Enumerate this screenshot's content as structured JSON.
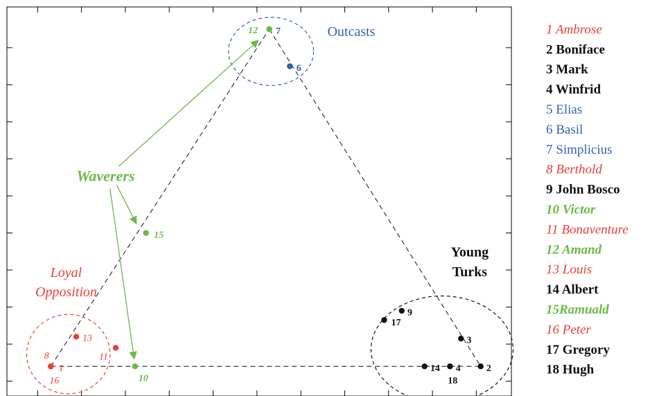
{
  "colors": {
    "loyal": "#e8403a",
    "outcast": "#3560ad",
    "waverer": "#6ab84a",
    "turk": "#111111"
  },
  "chart_data": {
    "type": "scatter",
    "title": "",
    "xlabel": "",
    "ylabel": "",
    "grid": false,
    "xlim": [
      0,
      11.5
    ],
    "ylim": [
      0,
      10.5
    ],
    "points": [
      {
        "id": "1",
        "x": 1.0,
        "y": 0.8,
        "group": "loyal"
      },
      {
        "id": "2",
        "x": 10.8,
        "y": 0.8,
        "group": "turk"
      },
      {
        "id": "3",
        "x": 10.35,
        "y": 1.55,
        "group": "turk"
      },
      {
        "id": "4",
        "x": 10.1,
        "y": 0.8,
        "group": "turk"
      },
      {
        "id": "5",
        "x": 6.45,
        "y": 8.9,
        "group": "outcast"
      },
      {
        "id": "6",
        "x": 6.45,
        "y": 8.9,
        "group": "outcast"
      },
      {
        "id": "7",
        "x": 5.98,
        "y": 9.9,
        "group": "outcast"
      },
      {
        "id": "8",
        "x": 1.0,
        "y": 0.8,
        "group": "loyal"
      },
      {
        "id": "9",
        "x": 9.0,
        "y": 2.3,
        "group": "turk"
      },
      {
        "id": "10",
        "x": 2.92,
        "y": 0.8,
        "group": "waverer"
      },
      {
        "id": "11",
        "x": 2.48,
        "y": 1.3,
        "group": "loyal"
      },
      {
        "id": "12",
        "x": 5.98,
        "y": 9.9,
        "group": "waverer"
      },
      {
        "id": "13",
        "x": 1.58,
        "y": 1.6,
        "group": "loyal"
      },
      {
        "id": "14",
        "x": 9.52,
        "y": 0.8,
        "group": "turk"
      },
      {
        "id": "15",
        "x": 3.17,
        "y": 4.4,
        "group": "waverer"
      },
      {
        "id": "16",
        "x": 1.0,
        "y": 0.8,
        "group": "loyal"
      },
      {
        "id": "17",
        "x": 8.6,
        "y": 2.05,
        "group": "turk"
      },
      {
        "id": "18",
        "x": 10.1,
        "y": 0.8,
        "group": "turk"
      }
    ],
    "point_labels": [
      {
        "text": "1",
        "x": 1.18,
        "y": 0.73,
        "group": "loyal"
      },
      {
        "text": "8",
        "x": 0.85,
        "y": 1.07,
        "group": "loyal"
      },
      {
        "text": "16",
        "x": 0.97,
        "y": 0.4,
        "group": "loyal"
      },
      {
        "text": "13",
        "x": 1.72,
        "y": 1.55,
        "group": "loyal"
      },
      {
        "text": "11",
        "x": 2.1,
        "y": 1.04,
        "group": "loyal"
      },
      {
        "text": "10",
        "x": 3.0,
        "y": 0.46,
        "group": "waverer"
      },
      {
        "text": "15",
        "x": 3.35,
        "y": 4.33,
        "group": "waverer"
      },
      {
        "text": "12",
        "x": 5.5,
        "y": 9.85,
        "group": "waverer"
      },
      {
        "text": "7",
        "x": 6.13,
        "y": 9.83,
        "group": "outcast"
      },
      {
        "text": "6",
        "x": 6.6,
        "y": 8.83,
        "group": "outcast"
      },
      {
        "text": "9",
        "x": 9.13,
        "y": 2.24,
        "group": "turk"
      },
      {
        "text": "17",
        "x": 8.76,
        "y": 1.97,
        "group": "turk"
      },
      {
        "text": "3",
        "x": 10.48,
        "y": 1.49,
        "group": "turk"
      },
      {
        "text": "14",
        "x": 9.65,
        "y": 0.73,
        "group": "turk"
      },
      {
        "text": "4",
        "x": 10.23,
        "y": 0.73,
        "group": "turk"
      },
      {
        "text": "18",
        "x": 10.05,
        "y": 0.4,
        "group": "turk"
      },
      {
        "text": "2",
        "x": 10.93,
        "y": 0.73,
        "group": "turk"
      }
    ],
    "dashed_lines": [
      {
        "x1": 1.0,
        "y1": 0.8,
        "x2": 10.8,
        "y2": 0.8
      },
      {
        "x1": 1.0,
        "y1": 0.8,
        "x2": 5.98,
        "y2": 9.9
      },
      {
        "x1": 5.98,
        "y1": 9.9,
        "x2": 10.8,
        "y2": 0.8
      }
    ],
    "circles": [
      {
        "group": "loyal",
        "cx": 1.4,
        "cy": 1.13,
        "rx": 0.95,
        "ry": 1.07
      },
      {
        "group": "outcast",
        "cx": 6.02,
        "cy": 9.3,
        "rx": 0.97,
        "ry": 0.92
      },
      {
        "group": "turk",
        "cx": 9.92,
        "cy": 1.26,
        "rx": 1.62,
        "ry": 1.44
      }
    ],
    "group_labels": [
      {
        "key": "waverers",
        "text": "Waverers",
        "x": 2.25,
        "y": 5.9,
        "group": "waverer",
        "style": "italic-bold"
      },
      {
        "key": "loyal1",
        "text": "Loyal",
        "x": 1.35,
        "y": 3.3,
        "group": "loyal",
        "style": "italic"
      },
      {
        "key": "loyal2",
        "text": "Opposition",
        "x": 1.35,
        "y": 2.78,
        "group": "loyal",
        "style": "italic"
      },
      {
        "key": "outcasts",
        "text": "Outcasts",
        "x": 7.85,
        "y": 9.8,
        "group": "outcast",
        "style": "normal"
      },
      {
        "key": "turks1",
        "text": "Young",
        "x": 10.55,
        "y": 3.85,
        "group": "turk",
        "style": "bold"
      },
      {
        "key": "turks2",
        "text": "Turks",
        "x": 10.55,
        "y": 3.32,
        "group": "turk",
        "style": "bold"
      }
    ],
    "arrows": [
      {
        "x1": 2.55,
        "y1": 6.2,
        "x2": 5.73,
        "y2": 9.6
      },
      {
        "x1": 2.5,
        "y1": 5.7,
        "x2": 2.95,
        "y2": 4.65
      },
      {
        "x1": 2.35,
        "y1": 5.6,
        "x2": 2.9,
        "y2": 1.0
      }
    ],
    "xticks": [
      0.7,
      1.7,
      2.7,
      3.7,
      4.7,
      5.7,
      6.7,
      7.7,
      8.7,
      9.7,
      10.7
    ],
    "yticks": [
      0.4,
      1.4,
      2.4,
      3.4,
      4.4,
      5.4,
      6.4,
      7.4,
      8.4,
      9.4
    ],
    "legend": {
      "placement": "right",
      "entries": [
        {
          "text": "1 Ambrose",
          "group": "loyal"
        },
        {
          "text": "2 Boniface",
          "group": "turk"
        },
        {
          "text": "3 Mark",
          "group": "turk"
        },
        {
          "text": "4 Winfrid",
          "group": "turk"
        },
        {
          "text": "5 Elias",
          "group": "outcast"
        },
        {
          "text": "6 Basil",
          "group": "outcast"
        },
        {
          "text": "7 Simplicius",
          "group": "outcast"
        },
        {
          "text": "8 Berthold",
          "group": "loyal"
        },
        {
          "text": "9 John Bosco",
          "group": "turk"
        },
        {
          "text": "10 Victor",
          "group": "waverer"
        },
        {
          "text": "11 Bonaventure",
          "group": "loyal"
        },
        {
          "text": "12 Amand",
          "group": "waverer"
        },
        {
          "text": "13 Louis",
          "group": "loyal"
        },
        {
          "text": "14 Albert",
          "group": "turk"
        },
        {
          "text": "15Ramuald",
          "group": "waverer"
        },
        {
          "text": "16 Peter",
          "group": "loyal"
        },
        {
          "text": "17 Gregory",
          "group": "turk"
        },
        {
          "text": "18 Hugh",
          "group": "turk"
        }
      ]
    }
  }
}
